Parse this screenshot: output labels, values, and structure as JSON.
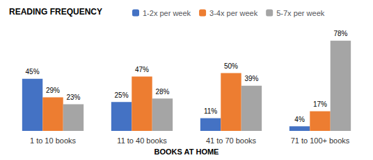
{
  "chart_data": {
    "type": "bar",
    "title": "READING FREQUENCY",
    "xlabel": "BOOKS AT HOME",
    "categories": [
      "1 to 10 books",
      "11 to 40 books",
      "41 to 70 books",
      "71 to 100+ books"
    ],
    "series": [
      {
        "name": "1-2x per week",
        "color": "#4472C4",
        "values": [
          45,
          25,
          11,
          4
        ],
        "value_labels": [
          "45%",
          "25%",
          "11%",
          "4%"
        ]
      },
      {
        "name": "3-4x per week",
        "color": "#ED7D31",
        "values": [
          29,
          47,
          50,
          17
        ],
        "value_labels": [
          "29%",
          "47%",
          "50%",
          "17%"
        ]
      },
      {
        "name": "5-7x per week",
        "color": "#A5A5A5",
        "values": [
          23,
          28,
          39,
          78
        ],
        "value_labels": [
          "23%",
          "28%",
          "39%",
          "78%"
        ]
      }
    ],
    "ylim": [
      0,
      88
    ],
    "grid": false,
    "legend": "top",
    "data_labels": true,
    "tick_labels": "x"
  }
}
